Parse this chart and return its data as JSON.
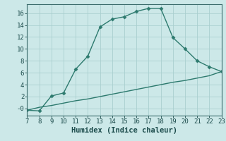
{
  "title": "",
  "xlabel": "Humidex (Indice chaleur)",
  "ylabel": "",
  "background_color": "#cce8e8",
  "grid_color": "#aacfcf",
  "line_color": "#2d7a6e",
  "xlim": [
    7,
    23
  ],
  "ylim": [
    -1.2,
    17.5
  ],
  "xticks": [
    7,
    8,
    9,
    10,
    11,
    12,
    13,
    14,
    15,
    16,
    17,
    18,
    19,
    20,
    21,
    22,
    23
  ],
  "yticks": [
    0,
    2,
    4,
    6,
    8,
    10,
    12,
    14,
    16
  ],
  "ytick_labels": [
    "-0",
    "2",
    "4",
    "6",
    "8",
    "10",
    "12",
    "14",
    "16"
  ],
  "line1_x": [
    7,
    8,
    9,
    10,
    11,
    12,
    13,
    14,
    15,
    16,
    17,
    18,
    19,
    20,
    21,
    22,
    23
  ],
  "line1_y": [
    -0.3,
    -0.4,
    2.1,
    2.6,
    6.6,
    8.8,
    13.7,
    15.0,
    15.4,
    16.3,
    16.8,
    16.8,
    11.9,
    10.0,
    8.0,
    7.0,
    6.2
  ],
  "line2_x": [
    7,
    8,
    9,
    10,
    11,
    12,
    13,
    14,
    15,
    16,
    17,
    18,
    19,
    20,
    21,
    22,
    23
  ],
  "line2_y": [
    -0.3,
    0.2,
    0.5,
    0.9,
    1.3,
    1.6,
    2.0,
    2.4,
    2.8,
    3.2,
    3.6,
    4.0,
    4.4,
    4.7,
    5.1,
    5.5,
    6.2
  ],
  "marker": "D",
  "markersize": 2.5,
  "linewidth": 1.0,
  "xlabel_fontsize": 7.5,
  "tick_fontsize": 6.5
}
